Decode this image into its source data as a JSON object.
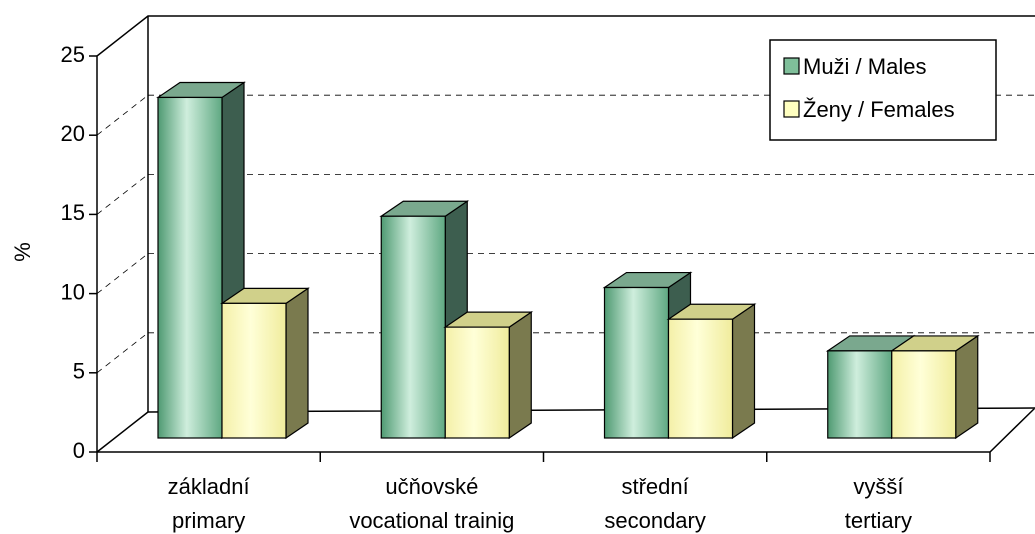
{
  "chart_data": {
    "type": "bar",
    "ylabel": "%",
    "ylim": [
      0,
      25
    ],
    "yticks": [
      "0",
      "5",
      "10",
      "15",
      "20",
      "25"
    ],
    "categories": [
      [
        "základní",
        "primary"
      ],
      [
        "učňovské",
        "vocational trainig"
      ],
      [
        "střední",
        "secondary"
      ],
      [
        "vyšší",
        "tertiary"
      ]
    ],
    "series": [
      {
        "name": "Muži / Males",
        "values": [
          21.5,
          14.0,
          9.5,
          5.5
        ]
      },
      {
        "name": "Ženy / Females",
        "values": [
          8.5,
          7.0,
          7.5,
          5.5
        ]
      }
    ],
    "grid": true,
    "legend": "top-right",
    "colors": {
      "males_front_light": "#cfeedd",
      "males_front_dark": "#5fa882",
      "males_top": "#7aa88e",
      "males_side": "#3d5e4f",
      "females_front": "#ffffc8",
      "females_top": "#d0d08a",
      "females_side": "#7a7a4e"
    }
  }
}
